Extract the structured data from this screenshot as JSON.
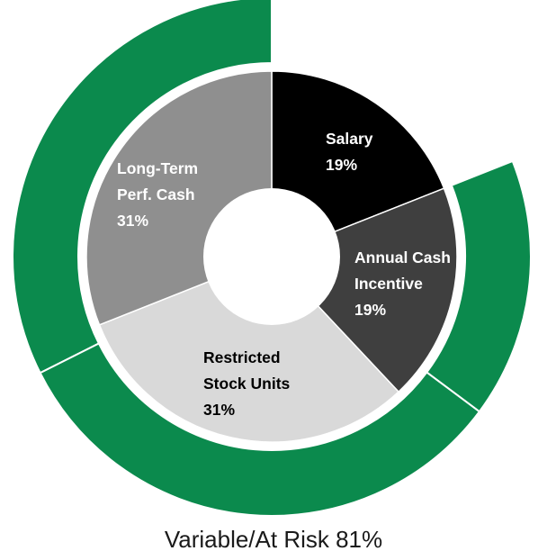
{
  "chart_data": {
    "type": "pie",
    "variant": "donut-with-outer-ring",
    "slices": [
      {
        "lines": [
          "Salary",
          "19%"
        ],
        "value": 19,
        "color": "#000000",
        "label_color": "#ffffff"
      },
      {
        "lines": [
          "Annual Cash",
          "Incentive",
          "19%"
        ],
        "value": 19,
        "color": "#3f3f3f",
        "label_color": "#ffffff"
      },
      {
        "lines": [
          "Restricted",
          "Stock Units",
          "31%"
        ],
        "value": 31,
        "color": "#d9d9d9",
        "label_color": "#000000"
      },
      {
        "lines": [
          "Long-Term",
          "Perf. Cash",
          "31%"
        ],
        "value": 31,
        "color": "#8f8f8f",
        "label_color": "#ffffff"
      }
    ],
    "outer_ring": {
      "covers": [
        "Annual Cash Incentive",
        "Restricted Stock Units",
        "Long-Term Perf. Cash"
      ],
      "value": 81,
      "color": "#0b8a4d"
    },
    "caption": "Variable/At Risk 81%"
  }
}
